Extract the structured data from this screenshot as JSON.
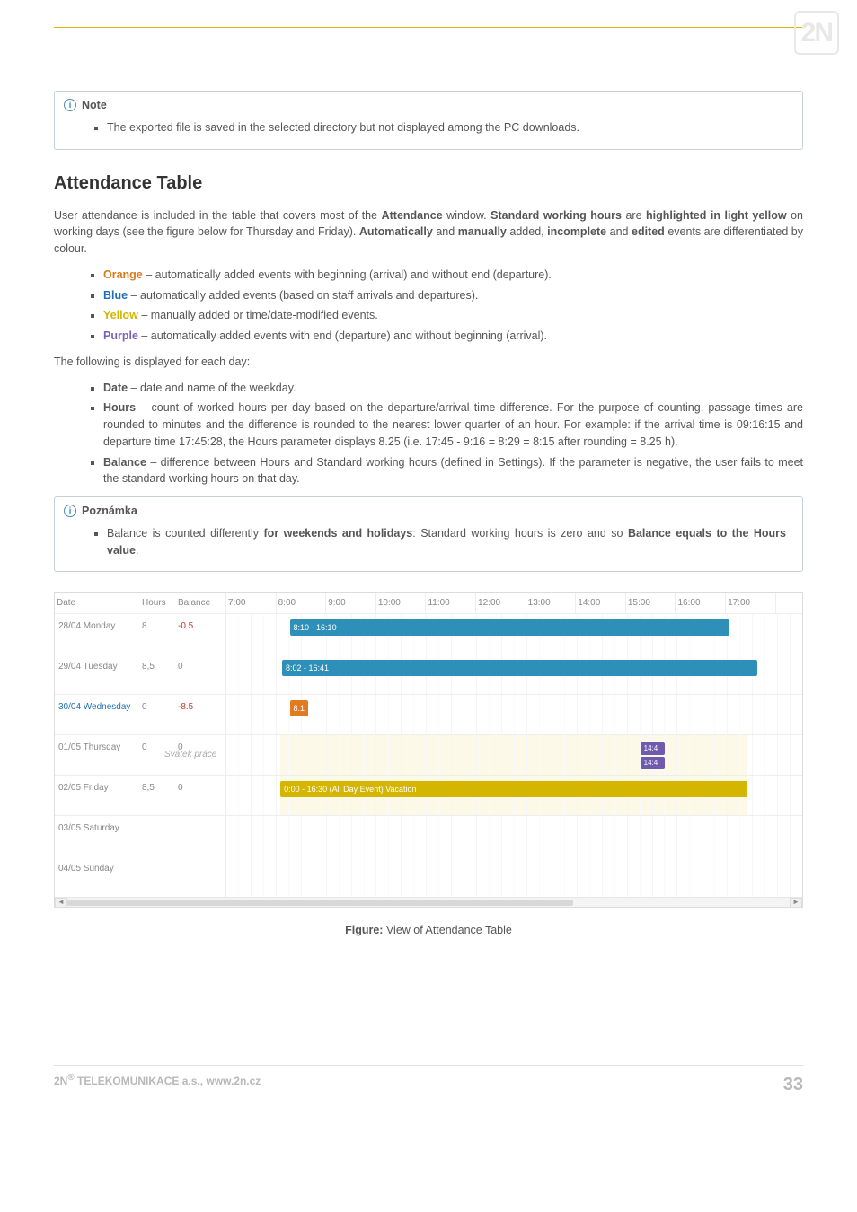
{
  "logo": "2N",
  "note1": {
    "title": "Note",
    "items": [
      " The exported file is saved in the selected directory but not displayed among the PC downloads."
    ]
  },
  "section_title": "Attendance Table",
  "para1_parts": {
    "p1": "User attendance is included in the table that covers most of the ",
    "b1": "Attendance",
    "p2": " window. ",
    "b2": "Standard working hours",
    "p3": " are ",
    "b3": "highlighted in light yellow",
    "p4": " on working days (see the figure below for Thursday and Friday). ",
    "b4": "Automatically",
    "p5": " and ",
    "b5": "manually",
    "p6": " added, ",
    "b6": "incomplete",
    "p7": " and ",
    "b7": "edited",
    "p8": " events are differentiated by colour."
  },
  "colors": {
    "orange": {
      "label": "Orange",
      "rest": " – automatically added events with beginning (arrival) and without end (departure)."
    },
    "blue": {
      "label": "Blue",
      "rest": " – automatically added events (based on staff arrivals and departures)."
    },
    "yellow": {
      "label": "Yellow",
      "rest": " – manually added or time/date-modified events."
    },
    "purple": {
      "label": "Purple",
      "rest": "  – automatically added events with end (departure) and without beginning (arrival)."
    }
  },
  "para2": "The following is displayed for each day:",
  "fields": {
    "date": {
      "label": "Date",
      "rest": " – date and name of the weekday."
    },
    "hours": {
      "label": "Hours",
      "rest": " – count of worked hours per day based on the departure/arrival time difference. For the purpose of counting, passage times are rounded to minutes and the difference is rounded to the nearest lower quarter of an hour. For example: if the arrival time is 09:16:15 and departure time 17:45:28, the Hours parameter displays 8.25 (i.e. 17:45 - 9:16 = 8:29 = 8:15 after rounding = 8.25 h)."
    },
    "balance": {
      "label": "Balance",
      "rest": " – difference between Hours and Standard working hours (defined in Settings). If the parameter is negative, the user fails to meet the standard working hours on that day."
    }
  },
  "note2": {
    "title": "Poznámka",
    "pre": "Balance is counted differently ",
    "b1": "for weekends and holidays",
    "mid": ": Standard working hours is zero and so ",
    "b2": "Balance equals to the Hours value",
    "post": "."
  },
  "table": {
    "head": {
      "date": "Date",
      "hours": "Hours",
      "balance": "Balance"
    },
    "ticks": [
      "7:00",
      "8:00",
      "9:00",
      "10:00",
      "11:00",
      "12:00",
      "13:00",
      "14:00",
      "15:00",
      "16:00",
      "17:00"
    ],
    "tick_start": 7,
    "tick_end": 17.5,
    "rows": [
      {
        "date": "28/04 Monday",
        "hours": "8",
        "balance": "-0.5",
        "balance_neg": true,
        "events": [
          {
            "label": "8:10 - 16:10",
            "from": 8.17,
            "to": 16.17,
            "bg": "#2e8fb8"
          }
        ]
      },
      {
        "date": "29/04 Tuesday",
        "hours": "8,5",
        "balance": "0",
        "events": [
          {
            "label": "8:02 - 16:41",
            "from": 8.03,
            "to": 16.68,
            "bg": "#2e8fb8"
          }
        ]
      },
      {
        "date": "30/04 Wednesday",
        "date_link": true,
        "hours": "0",
        "balance": "-8.5",
        "balance_neg": true,
        "events": [
          {
            "label": "8:1",
            "from": 8.17,
            "to": 8.5,
            "bg": "#e07b1f"
          }
        ]
      },
      {
        "date": "01/05 Thursday",
        "hours": "0",
        "balance": "0",
        "holiday": "Svátek práce",
        "workband": true,
        "events": [
          {
            "label": "14:4",
            "from": 14.55,
            "to": 15.0,
            "bg": "#6f5aad",
            "small": true
          },
          {
            "label": "14:4",
            "from": 14.55,
            "to": 15.0,
            "bg": "#6f5aad",
            "small": true,
            "row2": true
          }
        ]
      },
      {
        "date": "02/05 Friday",
        "hours": "8,5",
        "balance": "0",
        "workband": true,
        "events": [
          {
            "label": "0:00 - 16:30 (All Day Event)   Vacation",
            "from": 8.0,
            "to": 16.5,
            "bg": "#d4b500"
          }
        ]
      },
      {
        "date": "03/05 Saturday",
        "hours": "",
        "balance": "",
        "events": []
      },
      {
        "date": "04/05 Sunday",
        "hours": "",
        "balance": "",
        "events": []
      }
    ]
  },
  "caption": {
    "b": "Figure:",
    "rest": " View of Attendance Table"
  },
  "footer": {
    "left_pre": "2N",
    "left_sup": "®",
    "left_post": " TELEKOMUNIKACE a.s., www.2n.cz",
    "page": "33"
  }
}
